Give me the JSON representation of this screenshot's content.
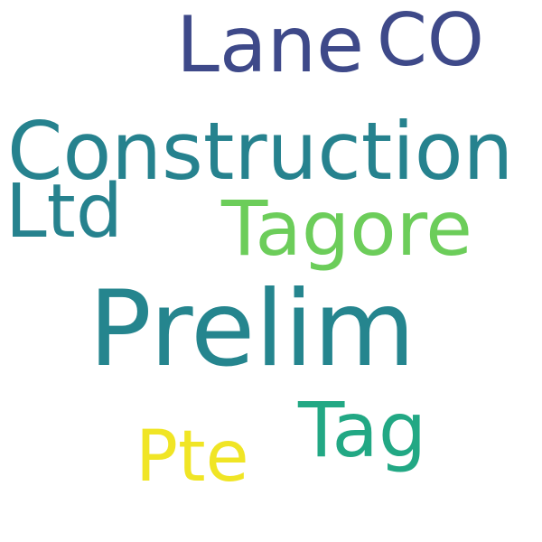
{
  "words": [
    {
      "text": "Lane",
      "color": "#3e4989"
    },
    {
      "text": "CO",
      "color": "#3e4989"
    },
    {
      "text": "Construction",
      "color": "#26828e"
    },
    {
      "text": "Ltd",
      "color": "#26828e"
    },
    {
      "text": "Tagore",
      "color": "#6ccd5a"
    },
    {
      "text": "Prelim",
      "color": "#25858e"
    },
    {
      "text": "Tag",
      "color": "#22a884"
    },
    {
      "text": "Pte",
      "color": "#f0e525"
    }
  ]
}
